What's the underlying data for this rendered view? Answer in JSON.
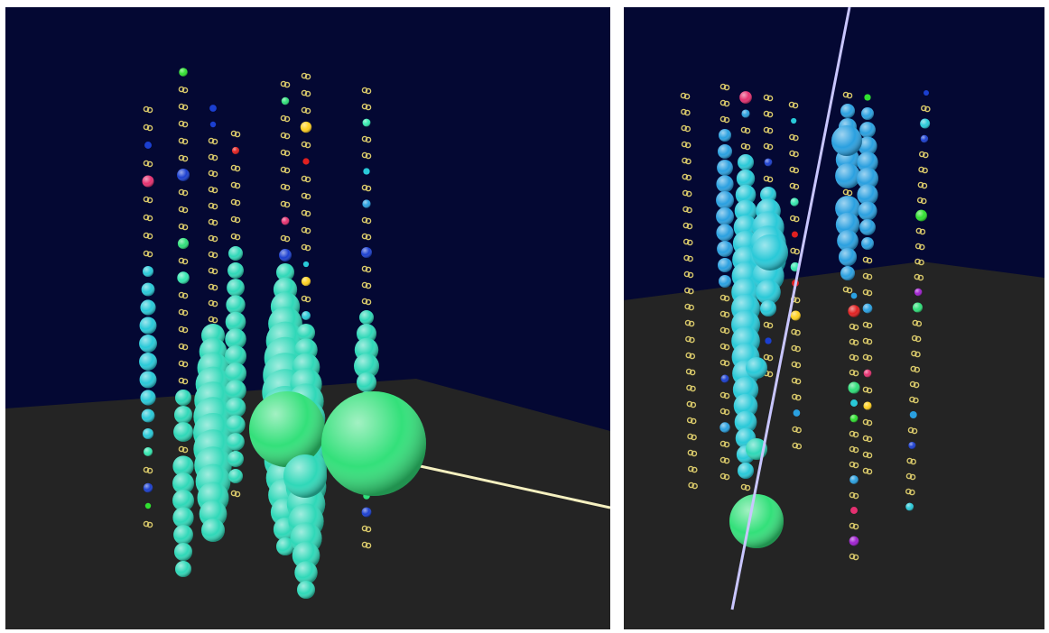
{
  "colors": {
    "sky": "#040833",
    "floor": "#242424",
    "background": "#ffffff",
    "inactive_dom": "#d8c86a",
    "track_left": "#f5f0c0",
    "track_right": "#c9c6ff",
    "hit_palette": [
      "#29c9d8",
      "#2aa0e0",
      "#34e8b0",
      "#2fe07a",
      "#1b3fd0",
      "#e53070",
      "#a020d0",
      "#e02020",
      "#ffd020",
      "#30e030"
    ]
  },
  "panels": [
    {
      "id": "left",
      "icon": "detector-event-view"
    },
    {
      "id": "right",
      "icon": "detector-event-view"
    }
  ]
}
